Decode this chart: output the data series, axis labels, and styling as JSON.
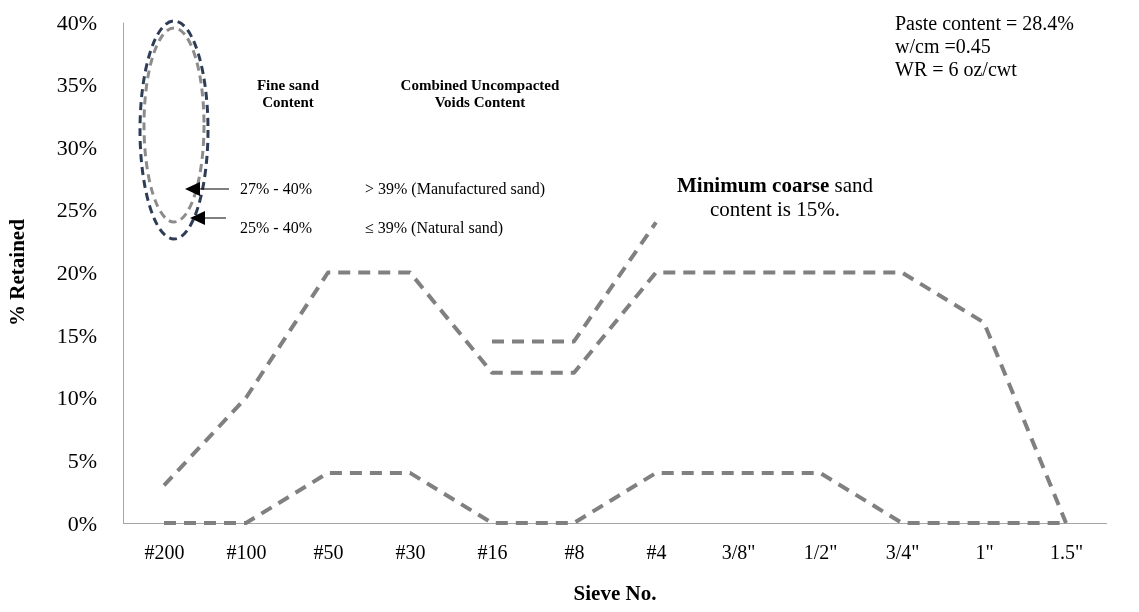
{
  "chart_data": {
    "type": "line",
    "xlabel": "Sieve No.",
    "ylabel": "% Retained",
    "categories": [
      "#200",
      "#100",
      "#50",
      "#30",
      "#16",
      "#8",
      "#4",
      "3/8\"",
      "1/2\"",
      "3/4\"",
      "1\"",
      "1.5\""
    ],
    "series": [
      {
        "color": "#808080",
        "values": [
          3,
          10,
          20,
          20,
          12,
          12,
          20,
          20,
          20,
          20,
          16,
          0
        ]
      },
      {
        "color": "#808080",
        "values": [
          0,
          0,
          4,
          4,
          0,
          0,
          4,
          4,
          4,
          0,
          0,
          0
        ]
      },
      {
        "color": "#808080",
        "values": [
          null,
          null,
          null,
          null,
          14.5,
          14.5,
          24,
          null,
          null,
          null,
          null,
          null
        ]
      }
    ],
    "ylim": [
      0,
      40
    ],
    "yticks": [
      {
        "value": 0,
        "label": "0%"
      },
      {
        "value": 5,
        "label": "5%"
      },
      {
        "value": 10,
        "label": "10%"
      },
      {
        "value": 15,
        "label": "15%"
      },
      {
        "value": 20,
        "label": "20%"
      },
      {
        "value": 25,
        "label": "25%"
      },
      {
        "value": 30,
        "label": "30%"
      },
      {
        "value": 35,
        "label": "35%"
      },
      {
        "value": 40,
        "label": "40%"
      }
    ],
    "line_style": "dashed",
    "marker": "none",
    "grid": false,
    "annotations": [
      "Paste content = 28.4%\nw/cm =0.45\nWR = 6 oz/cwt",
      "Fine sand\nContent",
      "Combined Uncompacted\nVoids Content",
      "27% - 40%",
      "> 39%  (Manufactured sand)",
      "25% - 40%",
      "≤ 39%  (Natural sand)",
      "Minimum coarse sand\ncontent is 15%."
    ]
  }
}
